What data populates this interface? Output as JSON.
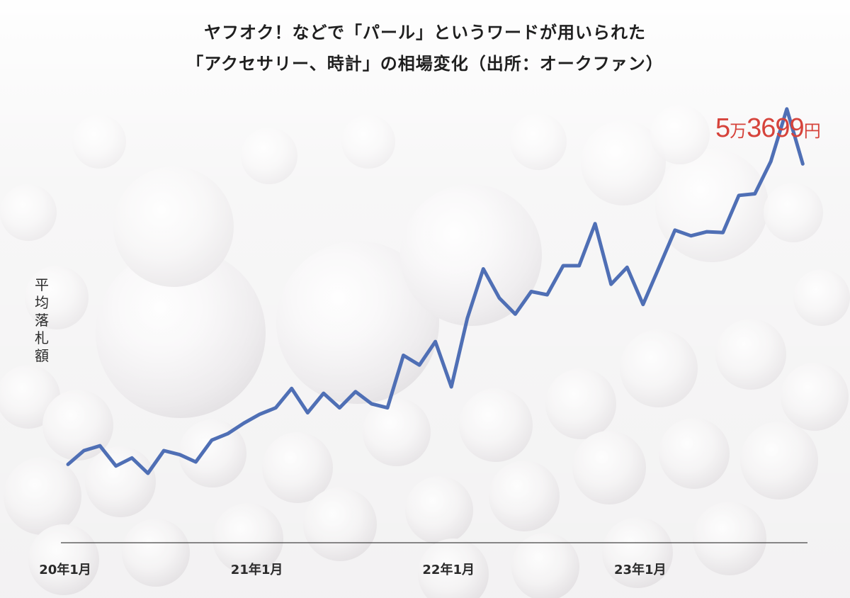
{
  "title_line1": "ヤフオク！などで「パール」というワードが用いられた",
  "title_line2": "「アクセサリー、時計」の相場変化（出所：オークファン）",
  "peak_label": {
    "prefix": "5",
    "man": "万",
    "rest": "3699",
    "unit": "円"
  },
  "colors": {
    "line": "#4f6fb5",
    "peak": "#d6433b",
    "axis": "#444444"
  },
  "chart_data": {
    "type": "line",
    "title": "ヤフオク！などで「パール」というワードが用いられた「アクセサリー、時計」の相場変化（出所：オークファン）",
    "ylabel": "平均落札額",
    "xlabel": "",
    "x_ticks": [
      "20年1月",
      "21年1月",
      "22年1月",
      "23年1月"
    ],
    "x_tick_index": [
      0,
      12,
      24,
      36
    ],
    "ylim": [
      0,
      60000
    ],
    "grid": false,
    "annotation": "5万3699円",
    "series": [
      {
        "values": [
          9700,
          11400,
          12000,
          9500,
          10500,
          8600,
          11400,
          10900,
          10000,
          12700,
          13500,
          14800,
          15900,
          16700,
          19100,
          16100,
          18500,
          16700,
          18700,
          17200,
          16700,
          23200,
          22000,
          24900,
          19300,
          27800,
          33900,
          30300,
          28300,
          31100,
          30700,
          34300,
          34300,
          39500,
          32000,
          34100,
          29500,
          34100,
          38700,
          38000,
          38500,
          38400,
          43000,
          43200,
          47200,
          53699,
          46900
        ]
      }
    ]
  }
}
